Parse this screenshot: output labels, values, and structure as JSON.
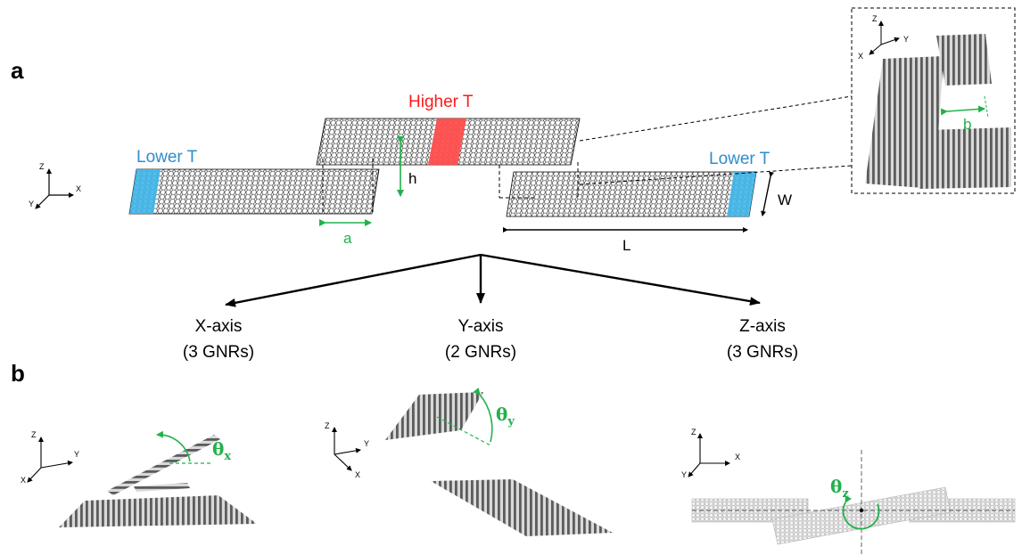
{
  "panel_labels": {
    "a": "a",
    "b": "b"
  },
  "temperature_labels": {
    "higher": "Higher T",
    "lower_left": "Lower T",
    "lower_right": "Lower T"
  },
  "dimension_labels": {
    "a": "a",
    "h": "h",
    "w": "W",
    "l": "L",
    "b": "b"
  },
  "axis_triads": {
    "main": {
      "z": "Z",
      "x": "X",
      "y": "Y"
    },
    "inset": {
      "z": "Z",
      "y": "Y",
      "x": "X"
    },
    "b_x": {
      "z": "Z",
      "y": "Y",
      "x": "X"
    },
    "b_y": {
      "z": "Z",
      "y": "Y",
      "x": "X"
    },
    "b_z": {
      "z": "Z",
      "y": "Y",
      "x": "X"
    }
  },
  "branches": [
    {
      "axis": "X-axis",
      "count": "(3 GNRs)"
    },
    {
      "axis": "Y-axis",
      "count": "(2 GNRs)"
    },
    {
      "axis": "Z-axis",
      "count": "(3 GNRs)"
    }
  ],
  "rotation_labels": {
    "x": {
      "symbol": "θ",
      "sub": "x"
    },
    "y": {
      "symbol": "θ",
      "sub": "y"
    },
    "z": {
      "symbol": "θ",
      "sub": "z"
    }
  },
  "colors": {
    "hot": "#ff1a1a",
    "cold": "#2f8ec9",
    "dimension": "#22b14c",
    "ribbon_gray": "#7a7a7a"
  }
}
